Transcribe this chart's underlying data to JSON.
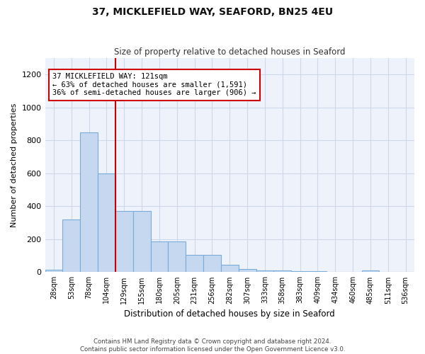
{
  "title_line1": "37, MICKLEFIELD WAY, SEAFORD, BN25 4EU",
  "title_line2": "Size of property relative to detached houses in Seaford",
  "xlabel": "Distribution of detached houses by size in Seaford",
  "ylabel": "Number of detached properties",
  "bar_labels": [
    "28sqm",
    "53sqm",
    "78sqm",
    "104sqm",
    "129sqm",
    "155sqm",
    "180sqm",
    "205sqm",
    "231sqm",
    "256sqm",
    "282sqm",
    "307sqm",
    "333sqm",
    "358sqm",
    "383sqm",
    "409sqm",
    "434sqm",
    "460sqm",
    "485sqm",
    "511sqm",
    "536sqm"
  ],
  "bar_values": [
    15,
    320,
    850,
    600,
    370,
    370,
    185,
    185,
    105,
    105,
    45,
    20,
    10,
    10,
    5,
    5,
    0,
    0,
    12,
    0,
    0
  ],
  "bar_color": "#c5d8f0",
  "bar_edgecolor": "#7aacda",
  "vline_x_pos": 3.5,
  "vline_color": "#cc0000",
  "annotation_text": "37 MICKLEFIELD WAY: 121sqm\n← 63% of detached houses are smaller (1,591)\n36% of semi-detached houses are larger (906) →",
  "annotation_box_color": "#ffffff",
  "annotation_box_edgecolor": "#cc0000",
  "ylim": [
    0,
    1300
  ],
  "yticks": [
    0,
    200,
    400,
    600,
    800,
    1000,
    1200
  ],
  "footnote": "Contains HM Land Registry data © Crown copyright and database right 2024.\nContains public sector information licensed under the Open Government Licence v3.0.",
  "background_color": "#ffffff",
  "grid_color": "#cdd8ea",
  "plot_bg_color": "#eef2fa"
}
